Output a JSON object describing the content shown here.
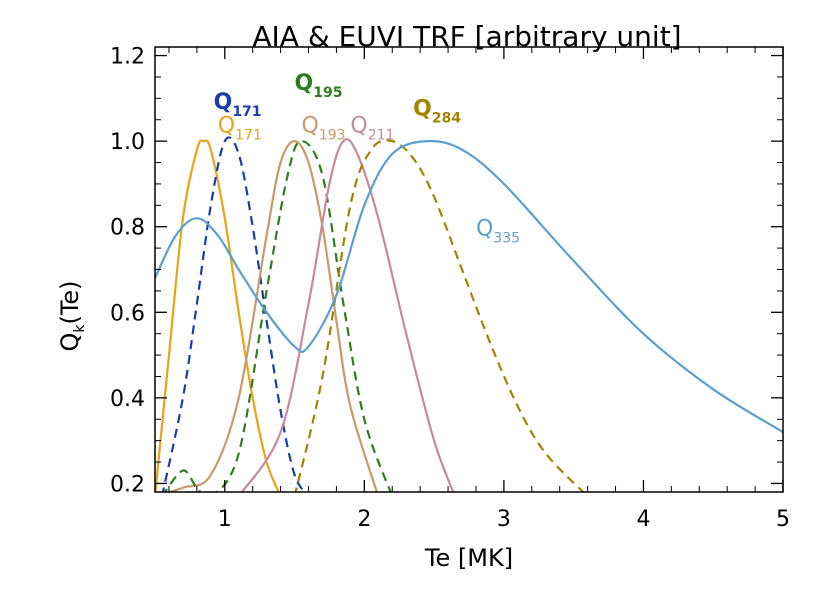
{
  "chart_data": {
    "type": "line",
    "title": "AIA & EUVI TRF [arbitrary unit]",
    "xlabel": "Te [MK]",
    "ylabel": {
      "base": "Q",
      "sub": "k",
      "rest": "(Te)"
    },
    "xlim": [
      0.5,
      5.0
    ],
    "ylim": [
      0.18,
      1.22
    ],
    "xticks": [
      1,
      2,
      3,
      4,
      5
    ],
    "yticks": [
      0.2,
      0.4,
      0.6,
      0.8,
      1.0,
      1.2
    ],
    "xtick_labels": [
      "1",
      "2",
      "3",
      "4",
      "5"
    ],
    "ytick_labels": [
      "0.2",
      "0.4",
      "0.6",
      "0.8",
      "1.0",
      "1.2"
    ],
    "grid": false,
    "series": [
      {
        "name": "Q171",
        "label_base": "Q",
        "label_sub": "171",
        "color": "#e8a317",
        "dash": "solid",
        "bold": false,
        "x": [
          0.5,
          0.6,
          0.7,
          0.8,
          0.85,
          0.9,
          1.0,
          1.1,
          1.2,
          1.3,
          1.4
        ],
        "y": [
          0.17,
          0.5,
          0.82,
          0.98,
          1.0,
          0.98,
          0.82,
          0.6,
          0.4,
          0.25,
          0.17
        ],
        "label_at": [
          0.95,
          1.02
        ]
      },
      {
        "name": "Q171",
        "label_base": "Q",
        "label_sub": "171",
        "color": "#1a3ea8",
        "dash": "dashed",
        "bold": true,
        "x": [
          0.55,
          0.7,
          0.8,
          0.9,
          1.0,
          1.1,
          1.2,
          1.3,
          1.4,
          1.5,
          1.6
        ],
        "y": [
          0.17,
          0.4,
          0.62,
          0.85,
          1.0,
          0.97,
          0.8,
          0.58,
          0.37,
          0.22,
          0.17
        ],
        "label_at": [
          0.92,
          1.075
        ]
      },
      {
        "name": "Q193",
        "label_base": "Q",
        "label_sub": "193",
        "color": "#c8996b",
        "dash": "solid",
        "bold": false,
        "x": [
          0.5,
          0.7,
          0.9,
          1.1,
          1.3,
          1.4,
          1.5,
          1.6,
          1.7,
          1.8,
          1.9,
          2.1
        ],
        "y": [
          0.17,
          0.19,
          0.22,
          0.4,
          0.78,
          0.95,
          1.0,
          0.95,
          0.8,
          0.58,
          0.38,
          0.17
        ],
        "label_at": [
          1.55,
          1.02
        ]
      },
      {
        "name": "Q195",
        "label_base": "Q",
        "label_sub": "195",
        "color": "#2e7d1e",
        "dash": "dashed",
        "bold": true,
        "x": [
          0.55,
          0.7,
          0.8,
          0.9,
          1.1,
          1.3,
          1.45,
          1.55,
          1.7,
          1.85,
          2.0,
          2.2
        ],
        "y": [
          0.17,
          0.23,
          0.19,
          0.17,
          0.27,
          0.65,
          0.92,
          1.0,
          0.92,
          0.62,
          0.35,
          0.17
        ],
        "label_at": [
          1.5,
          1.12
        ]
      },
      {
        "name": "Q211",
        "label_base": "Q",
        "label_sub": "211",
        "color": "#c48b9f",
        "dash": "solid",
        "bold": false,
        "x": [
          1.1,
          1.4,
          1.6,
          1.75,
          1.85,
          1.95,
          2.1,
          2.3,
          2.5,
          2.65
        ],
        "y": [
          0.17,
          0.32,
          0.62,
          0.9,
          1.0,
          0.97,
          0.82,
          0.55,
          0.3,
          0.17
        ],
        "label_at": [
          1.9,
          1.02
        ]
      },
      {
        "name": "Q284",
        "label_base": "Q",
        "label_sub": "284",
        "color": "#a08400",
        "dash": "dashed",
        "bold": true,
        "x": [
          1.5,
          1.7,
          1.9,
          2.05,
          2.2,
          2.35,
          2.5,
          2.7,
          2.9,
          3.1,
          3.3,
          3.6
        ],
        "y": [
          0.17,
          0.45,
          0.85,
          0.98,
          1.0,
          0.96,
          0.87,
          0.7,
          0.53,
          0.38,
          0.27,
          0.17
        ],
        "label_at": [
          2.35,
          1.06
        ]
      },
      {
        "name": "Q335",
        "label_base": "Q",
        "label_sub": "335",
        "color": "#5b9fcf",
        "dash": "solid",
        "bold": false,
        "x": [
          0.5,
          0.65,
          0.8,
          0.95,
          1.1,
          1.3,
          1.5,
          1.6,
          1.8,
          2.0,
          2.2,
          2.45,
          2.7,
          3.0,
          3.5,
          4.0,
          4.5,
          5.0
        ],
        "y": [
          0.68,
          0.78,
          0.82,
          0.78,
          0.7,
          0.6,
          0.52,
          0.52,
          0.64,
          0.85,
          0.97,
          1.0,
          0.98,
          0.9,
          0.72,
          0.55,
          0.42,
          0.32
        ],
        "label_at": [
          2.8,
          0.78
        ]
      }
    ]
  }
}
